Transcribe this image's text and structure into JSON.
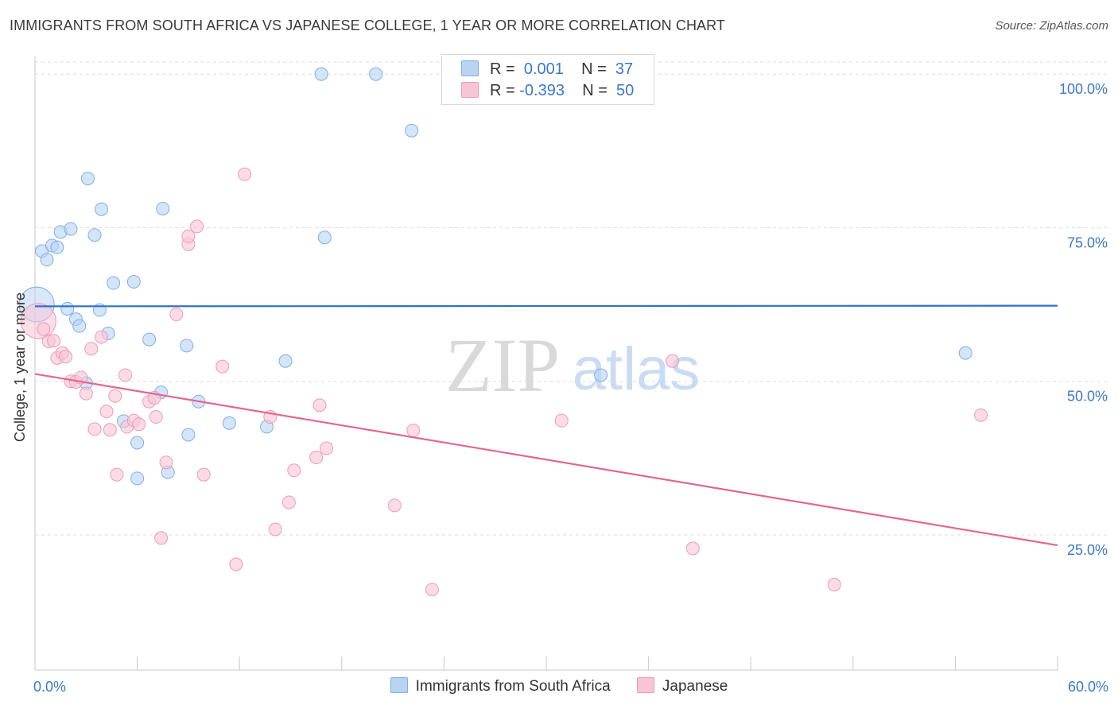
{
  "title": "IMMIGRANTS FROM SOUTH AFRICA VS JAPANESE COLLEGE, 1 YEAR OR MORE CORRELATION CHART",
  "source": "Source: ZipAtlas.com",
  "watermark": {
    "zip": "ZIP",
    "atlas": "atlas"
  },
  "legend": {
    "rows": [
      {
        "r_label": "R =",
        "r_value": "0.001",
        "n_label": "N =",
        "n_value": "37"
      },
      {
        "r_label": "R =",
        "r_value": "-0.393",
        "n_label": "N =",
        "n_value": "50"
      }
    ]
  },
  "colors": {
    "blue_fill": "#b9d3f3",
    "blue_stroke": "#7faee6",
    "blue_line": "#2f72c9",
    "pink_fill": "#f8c4d6",
    "pink_stroke": "#ee9ab8",
    "pink_line": "#e4668f",
    "tick_label": "#3b78c9",
    "grid": "#dddddd"
  },
  "chart_data": {
    "type": "scatter",
    "title": "IMMIGRANTS FROM SOUTH AFRICA VS JAPANESE COLLEGE, 1 YEAR OR MORE CORRELATION CHART",
    "xlabel": "",
    "ylabel": "College, 1 year or more",
    "xlim": [
      0,
      60
    ],
    "ylim": [
      3,
      103
    ],
    "x_tick_labels": [
      {
        "value": 0,
        "label": "0.0%"
      },
      {
        "value": 60,
        "label": "60.0%"
      }
    ],
    "y_tick_labels": [
      {
        "value": 25,
        "label": "25.0%"
      },
      {
        "value": 50,
        "label": "50.0%"
      },
      {
        "value": 75,
        "label": "75.0%"
      },
      {
        "value": 100,
        "label": "100.0%"
      }
    ],
    "grid": true,
    "legend_position": "top-center",
    "series": [
      {
        "name": "Immigrants from South Africa",
        "color": "#b9d3f3",
        "trend": {
          "x": [
            0,
            60
          ],
          "y": [
            62.2,
            62.3
          ]
        },
        "points": [
          {
            "x": 0.1,
            "y": 62.5,
            "big": true
          },
          {
            "x": 0.4,
            "y": 71.2
          },
          {
            "x": 0.7,
            "y": 69.8
          },
          {
            "x": 1.0,
            "y": 72.1
          },
          {
            "x": 1.3,
            "y": 71.8
          },
          {
            "x": 1.5,
            "y": 74.3
          },
          {
            "x": 2.1,
            "y": 74.8
          },
          {
            "x": 1.9,
            "y": 61.8
          },
          {
            "x": 2.4,
            "y": 60.1
          },
          {
            "x": 2.6,
            "y": 59.0
          },
          {
            "x": 3.0,
            "y": 49.7
          },
          {
            "x": 3.1,
            "y": 83.0
          },
          {
            "x": 3.5,
            "y": 73.8
          },
          {
            "x": 3.8,
            "y": 61.6
          },
          {
            "x": 3.9,
            "y": 78.0
          },
          {
            "x": 4.3,
            "y": 57.8
          },
          {
            "x": 4.6,
            "y": 66.0
          },
          {
            "x": 5.2,
            "y": 43.5
          },
          {
            "x": 5.8,
            "y": 66.2
          },
          {
            "x": 6.0,
            "y": 40.0
          },
          {
            "x": 6.0,
            "y": 34.2
          },
          {
            "x": 6.7,
            "y": 56.8
          },
          {
            "x": 7.4,
            "y": 48.2
          },
          {
            "x": 7.5,
            "y": 78.1
          },
          {
            "x": 7.8,
            "y": 35.2
          },
          {
            "x": 8.9,
            "y": 55.8
          },
          {
            "x": 9.0,
            "y": 41.3
          },
          {
            "x": 9.6,
            "y": 46.7
          },
          {
            "x": 11.4,
            "y": 43.2
          },
          {
            "x": 13.6,
            "y": 42.6
          },
          {
            "x": 14.7,
            "y": 53.3
          },
          {
            "x": 17.0,
            "y": 73.4
          },
          {
            "x": 16.8,
            "y": 100.0
          },
          {
            "x": 20.0,
            "y": 100.0
          },
          {
            "x": 22.1,
            "y": 90.8
          },
          {
            "x": 33.2,
            "y": 51.0
          },
          {
            "x": 54.6,
            "y": 54.6
          }
        ]
      },
      {
        "name": "Japanese",
        "color": "#f8c4d6",
        "trend": {
          "x": [
            0,
            60
          ],
          "y": [
            51.2,
            23.3
          ]
        },
        "points": [
          {
            "x": 0.2,
            "y": 59.8,
            "big": true
          },
          {
            "x": 0.5,
            "y": 58.5
          },
          {
            "x": 0.8,
            "y": 56.5
          },
          {
            "x": 1.1,
            "y": 56.6
          },
          {
            "x": 1.3,
            "y": 53.8
          },
          {
            "x": 1.6,
            "y": 54.6
          },
          {
            "x": 1.8,
            "y": 54.0
          },
          {
            "x": 2.1,
            "y": 50.0
          },
          {
            "x": 2.4,
            "y": 49.9
          },
          {
            "x": 2.7,
            "y": 50.6
          },
          {
            "x": 3.0,
            "y": 48.0
          },
          {
            "x": 3.3,
            "y": 55.3
          },
          {
            "x": 3.5,
            "y": 42.2
          },
          {
            "x": 3.9,
            "y": 57.2
          },
          {
            "x": 4.2,
            "y": 45.1
          },
          {
            "x": 4.4,
            "y": 42.1
          },
          {
            "x": 4.7,
            "y": 47.6
          },
          {
            "x": 4.8,
            "y": 34.8
          },
          {
            "x": 5.3,
            "y": 51.0
          },
          {
            "x": 5.4,
            "y": 42.6
          },
          {
            "x": 5.8,
            "y": 43.6
          },
          {
            "x": 6.1,
            "y": 43.0
          },
          {
            "x": 6.7,
            "y": 46.7
          },
          {
            "x": 7.0,
            "y": 47.3
          },
          {
            "x": 7.1,
            "y": 44.2
          },
          {
            "x": 7.4,
            "y": 24.5
          },
          {
            "x": 7.7,
            "y": 36.8
          },
          {
            "x": 8.3,
            "y": 60.9
          },
          {
            "x": 9.0,
            "y": 72.3
          },
          {
            "x": 9.0,
            "y": 73.6
          },
          {
            "x": 9.5,
            "y": 75.2
          },
          {
            "x": 9.9,
            "y": 34.8
          },
          {
            "x": 11.0,
            "y": 52.4
          },
          {
            "x": 12.3,
            "y": 83.7
          },
          {
            "x": 11.8,
            "y": 20.2
          },
          {
            "x": 13.8,
            "y": 44.2
          },
          {
            "x": 14.1,
            "y": 25.9
          },
          {
            "x": 14.9,
            "y": 30.3
          },
          {
            "x": 15.2,
            "y": 35.5
          },
          {
            "x": 16.5,
            "y": 37.6
          },
          {
            "x": 16.7,
            "y": 46.1
          },
          {
            "x": 17.1,
            "y": 39.1
          },
          {
            "x": 21.1,
            "y": 29.8
          },
          {
            "x": 22.2,
            "y": 42.0
          },
          {
            "x": 23.3,
            "y": 16.1
          },
          {
            "x": 30.9,
            "y": 43.6
          },
          {
            "x": 37.4,
            "y": 53.3
          },
          {
            "x": 38.6,
            "y": 22.8
          },
          {
            "x": 46.9,
            "y": 16.9
          },
          {
            "x": 55.5,
            "y": 44.5
          }
        ]
      }
    ]
  }
}
